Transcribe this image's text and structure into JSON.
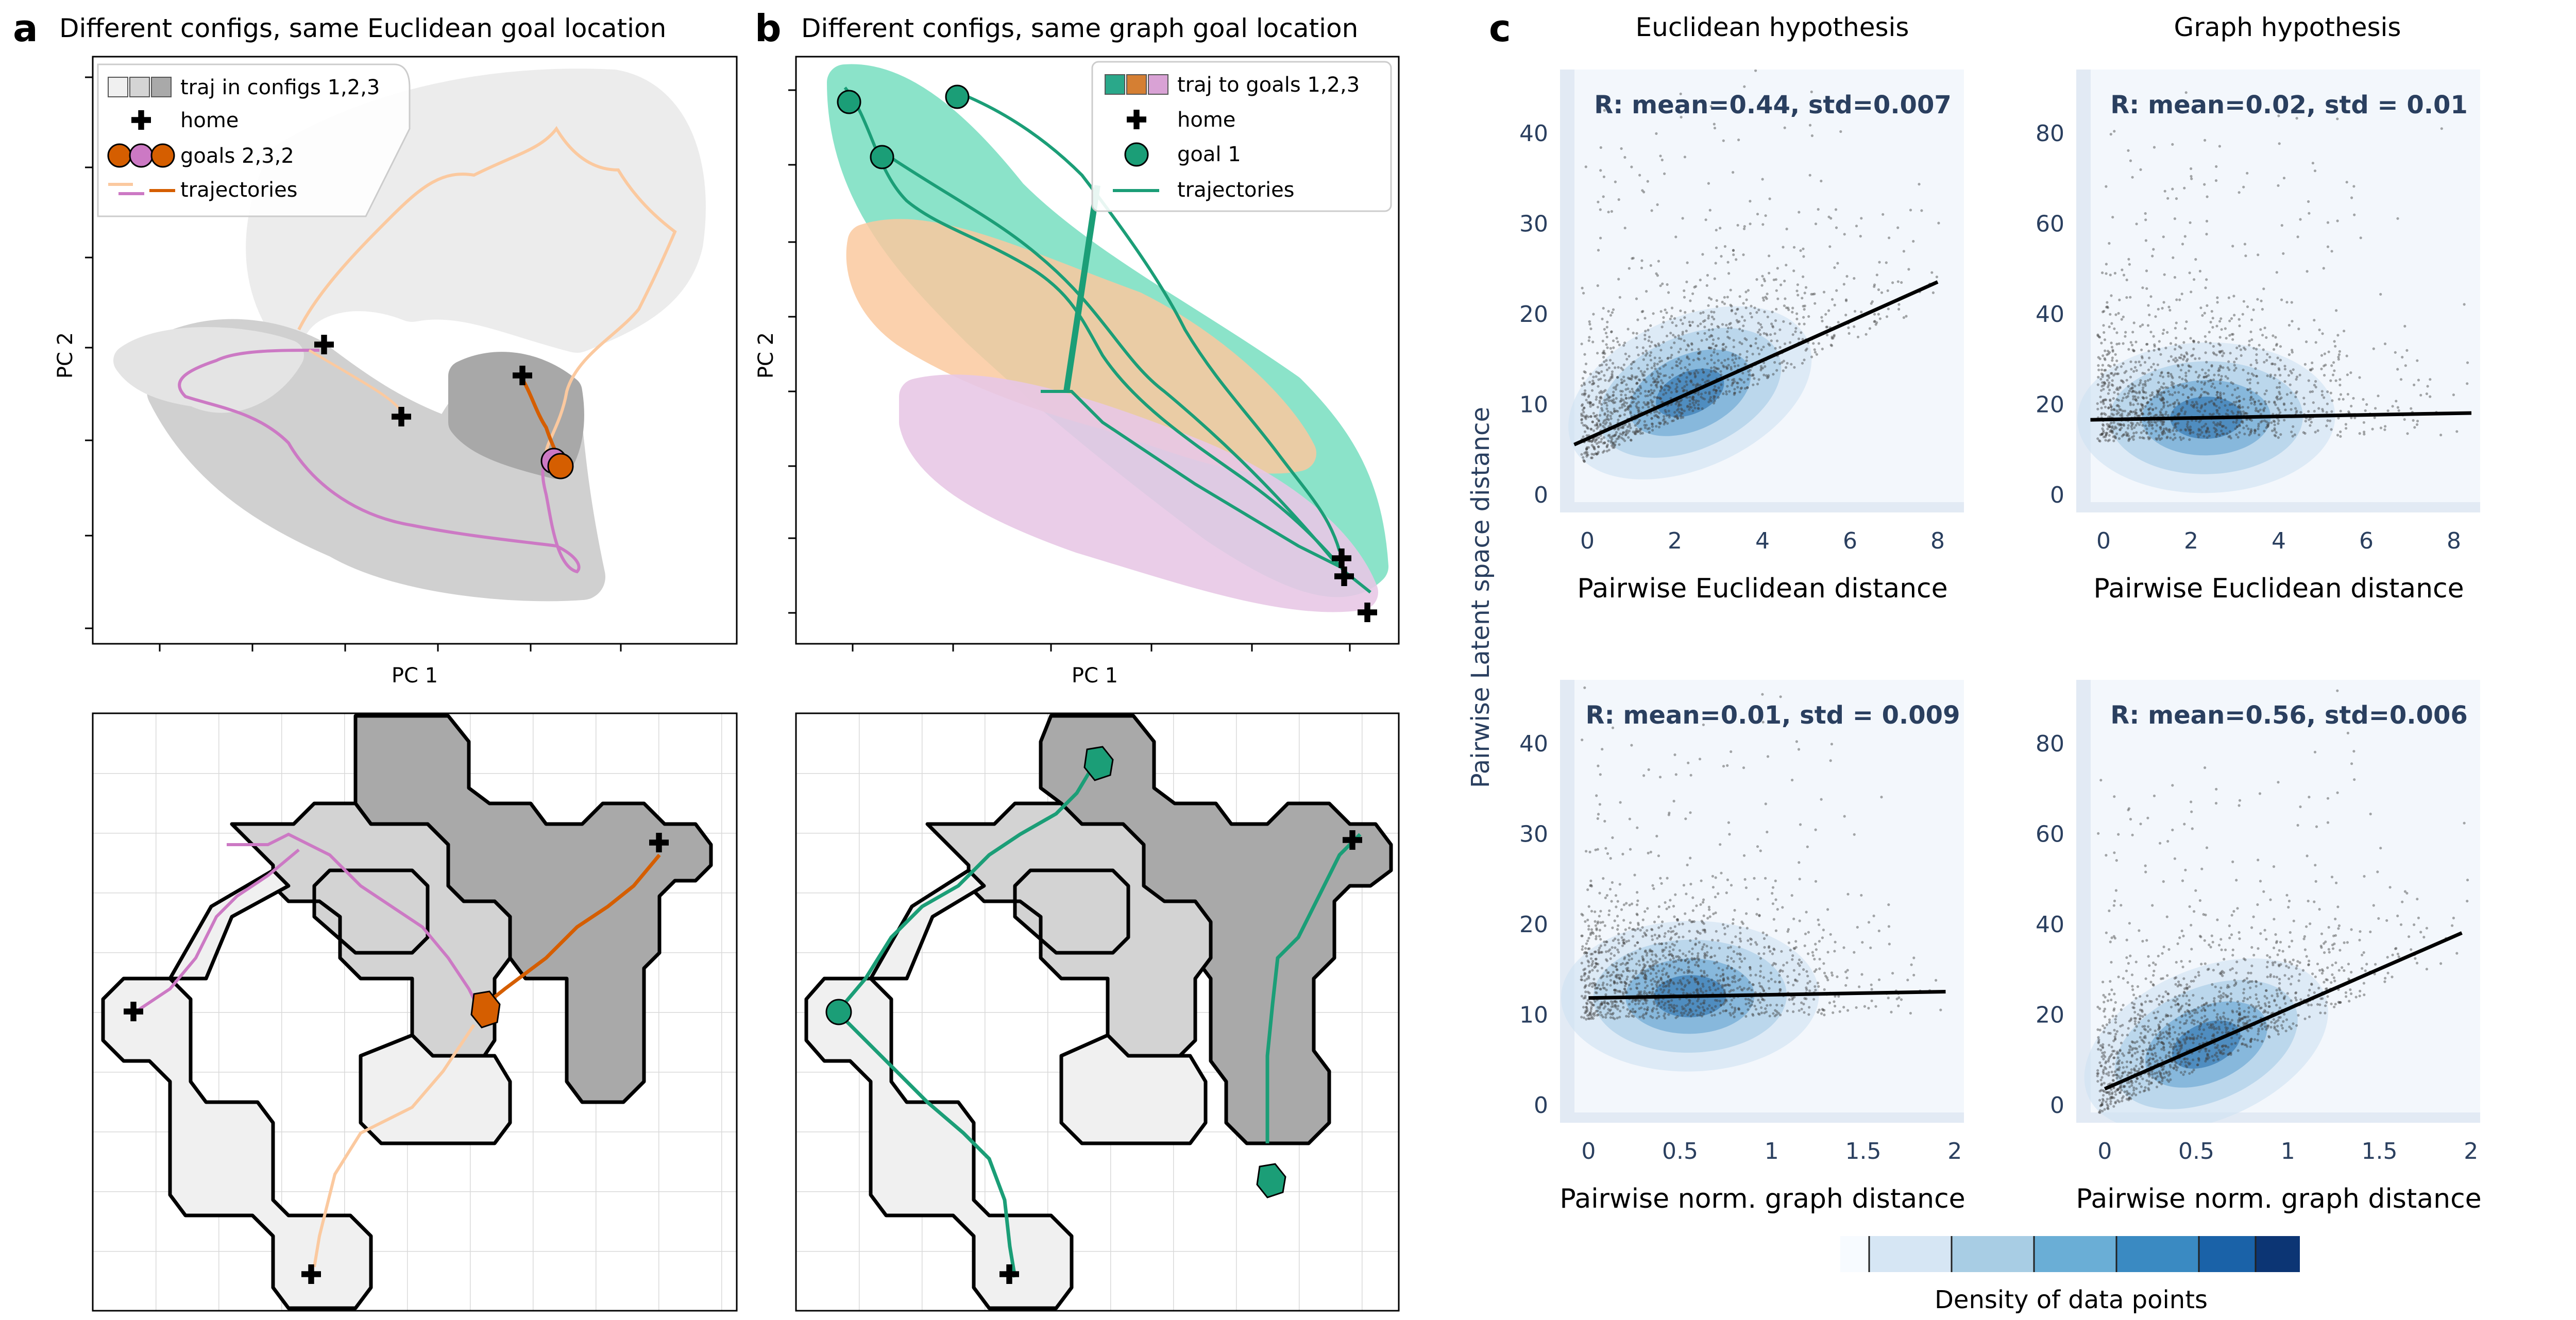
{
  "figure": {
    "panel_a": {
      "letter": "a",
      "title": "Different configs, same Euclidean goal location",
      "xlabel": "PC 1",
      "ylabel": "PC 2",
      "legend": [
        "traj in configs 1,2,3",
        "home",
        "goals 2,3,2",
        "trajectories"
      ]
    },
    "panel_b": {
      "letter": "b",
      "title": "Different configs, same graph goal location",
      "xlabel": "PC 1",
      "ylabel": "PC 2",
      "legend": [
        "traj to goals 1,2,3",
        "home",
        "goal 1",
        "trajectories"
      ]
    },
    "panel_c": {
      "letter": "c",
      "col_titles": [
        "Euclidean hypothesis",
        "Graph hypothesis"
      ],
      "shared_ylabel": "Pairwise Latent space distance",
      "colorbar_label": "Density of data points"
    }
  },
  "colors": {
    "light_gray": "#ececec",
    "mid_gray": "#d2d2d2",
    "dark_gray": "#a9a9a9",
    "pink": "#cc79c4",
    "peach": "#fbc99f",
    "orange": "#d55e00",
    "green": "#1b9e77",
    "teal_fill": "#7fe0c4",
    "density_blue": "#1f5f93",
    "panel_bg": "#f3f7fc"
  },
  "chart_data": [
    {
      "type": "scatter",
      "id": "c_top_left",
      "annotation": "R: mean=0.44, std=0.007",
      "xlabel": "Pairwise Euclidean distance",
      "ylabel": "",
      "xlim": [
        -0.6,
        8.6
      ],
      "ylim": [
        -2,
        47
      ],
      "xticks": [
        0,
        2,
        4,
        6,
        8
      ],
      "yticks": [
        0,
        10,
        20,
        30,
        40
      ],
      "fit_line": {
        "x": [
          -0.3,
          8.0
        ],
        "y": [
          5.5,
          23.5
        ]
      }
    },
    {
      "type": "scatter",
      "id": "c_top_right",
      "annotation": "R: mean=0.02, std = 0.01",
      "xlabel": "Pairwise Euclidean distance",
      "ylabel": "",
      "xlim": [
        -0.6,
        8.6
      ],
      "ylim": [
        -4,
        94
      ],
      "xticks": [
        0,
        2,
        4,
        6,
        8
      ],
      "yticks": [
        0,
        20,
        40,
        60,
        80
      ],
      "fit_line": {
        "x": [
          -0.3,
          8.4
        ],
        "y": [
          16.5,
          18.0
        ]
      }
    },
    {
      "type": "scatter",
      "id": "c_bottom_left",
      "annotation": "R: mean=0.01, std = 0.009",
      "xlabel": "Pairwise norm. graph distance",
      "ylabel": "Pairwise Latent space distance",
      "xlim": [
        -0.15,
        2.05
      ],
      "ylim": [
        -2,
        47
      ],
      "xticks": [
        "0",
        "0.5",
        "1",
        "1.5",
        "2"
      ],
      "xtick_values": [
        0,
        0.5,
        1,
        1.5,
        2
      ],
      "yticks": [
        0,
        10,
        20,
        30,
        40
      ],
      "fit_line": {
        "x": [
          0.0,
          1.95
        ],
        "y": [
          11.8,
          12.5
        ]
      }
    },
    {
      "type": "scatter",
      "id": "c_bottom_right",
      "annotation": "R: mean=0.56, std=0.006",
      "xlabel": "Pairwise norm. graph distance",
      "ylabel": "",
      "xlim": [
        -0.15,
        2.05
      ],
      "ylim": [
        -4,
        94
      ],
      "xticks": [
        "0",
        "0.5",
        "1",
        "1.5",
        "2"
      ],
      "xtick_values": [
        0,
        0.5,
        1,
        1.5,
        2
      ],
      "yticks": [
        0,
        20,
        40,
        60,
        80
      ],
      "fit_line": {
        "x": [
          0.0,
          1.95
        ],
        "y": [
          3.5,
          38.0
        ]
      }
    }
  ]
}
